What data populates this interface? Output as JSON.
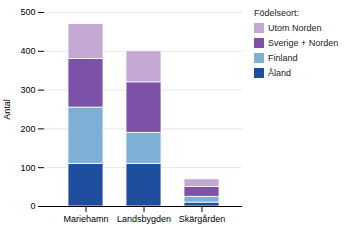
{
  "chart_data": {
    "type": "bar",
    "stacked": true,
    "categories": [
      "Mariehamn",
      "Landsbygden",
      "Skärgården"
    ],
    "series": [
      {
        "name": "Åland",
        "color": "#1F4E9E",
        "values": [
          110,
          110,
          10
        ]
      },
      {
        "name": "Finland",
        "color": "#7EB0D5",
        "values": [
          145,
          80,
          15
        ]
      },
      {
        "name": "Sverige + Norden",
        "color": "#7B52A8",
        "values": [
          125,
          130,
          25
        ]
      },
      {
        "name": "Utom Norden",
        "color": "#C4A8D4",
        "values": [
          90,
          80,
          20
        ]
      }
    ],
    "ylabel": "Antal",
    "ylim": [
      0,
      500
    ],
    "yticks": [
      0,
      100,
      200,
      300,
      400,
      500
    ],
    "grid": true,
    "legend": "right",
    "legend_title": "Födelseort:"
  }
}
